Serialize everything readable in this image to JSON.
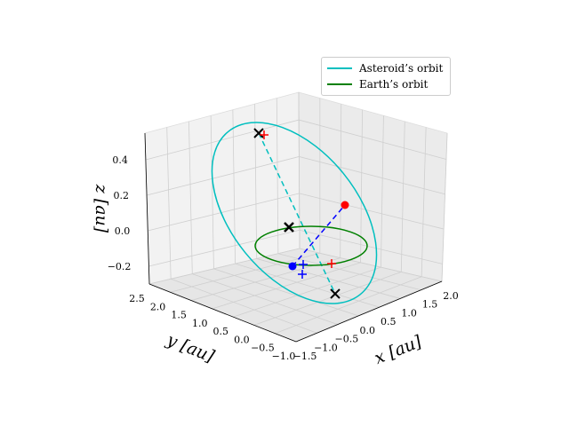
{
  "chart_data": {
    "type": "line3d",
    "title": "",
    "xlabel": "x [au]",
    "ylabel": "y [au]",
    "zlabel": "z [au]",
    "xlim": [
      -1.5,
      2.0
    ],
    "ylim": [
      -1.0,
      2.5
    ],
    "zlim": [
      -0.3,
      0.55
    ],
    "xticks": [
      "−1.5",
      "−1.0",
      "−0.5",
      "0.0",
      "0.5",
      "1.0",
      "1.5",
      "2.0"
    ],
    "yticks": [
      "−1.0",
      "−0.5",
      "0.0",
      "0.5",
      "1.0",
      "1.5",
      "2.0",
      "2.5"
    ],
    "zticks": [
      "−0.2",
      "0.0",
      "0.2",
      "0.4"
    ],
    "grid": true,
    "legend_position": "top-right",
    "series": [
      {
        "name": "Asteroid’s orbit",
        "color": "#00bfbf",
        "kind": "ellipse"
      },
      {
        "name": "Earth’s orbit",
        "color": "#008000",
        "kind": "circle"
      }
    ],
    "annotations": {
      "node_line_color": "#00bfbf",
      "connector_color": "#0000ff",
      "cross_markers_color": "#000000",
      "plus_markers_color": "#ff0000",
      "asteroid_point_color": "#ff0000",
      "earth_point_color": "#0000ff"
    }
  }
}
